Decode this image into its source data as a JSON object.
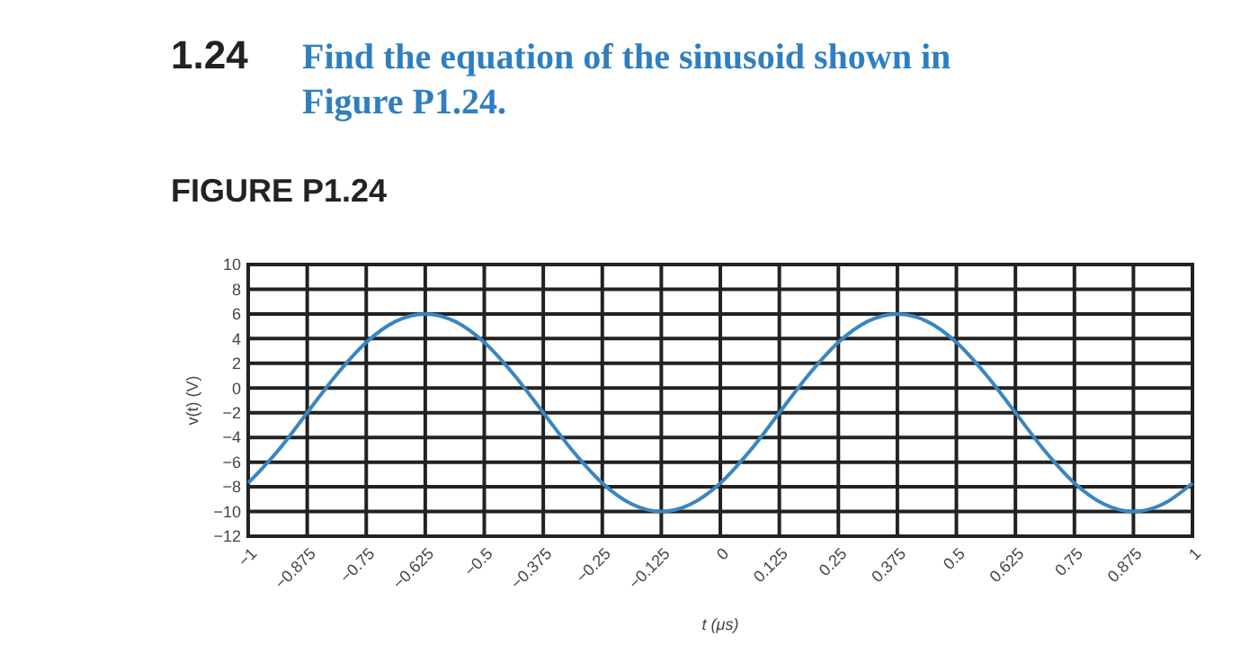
{
  "chart_data": {
    "type": "line",
    "title": "Find the equation of the sinusoid shown in Figure P1.24.",
    "annotations": [
      "1.24",
      "FIGURE P1.24"
    ],
    "xlabel": "t (μs)",
    "ylabel": "v(t) (V)",
    "x": [
      -1,
      -0.9375,
      -0.875,
      -0.8125,
      -0.75,
      -0.6875,
      -0.625,
      -0.5625,
      -0.5,
      -0.4375,
      -0.375,
      -0.3125,
      -0.25,
      -0.1875,
      -0.125,
      -0.0625,
      0,
      0.0625,
      0.125,
      0.1875,
      0.25,
      0.3125,
      0.375,
      0.4375,
      0.5,
      0.5625,
      0.625,
      0.6875,
      0.75,
      0.8125,
      0.875,
      0.9375,
      1
    ],
    "series": [
      {
        "color": "#3a86c0",
        "values": [
          -7.7,
          -5.1,
          -2,
          1.1,
          3.7,
          5.4,
          6,
          5.4,
          3.7,
          1.1,
          -2,
          -5.1,
          -7.7,
          -9.4,
          -10,
          -9.4,
          -7.7,
          -5.1,
          -2,
          1.1,
          3.7,
          5.4,
          6,
          5.4,
          3.7,
          1.1,
          -2,
          -5.1,
          -7.7,
          -9.4,
          -10,
          -9.4,
          -7.7
        ]
      }
    ],
    "xlim": [
      -1,
      1
    ],
    "ylim": [
      -12,
      10
    ],
    "xticks": [
      {
        "value": -1,
        "label": "−1"
      },
      {
        "value": -0.875,
        "label": "−0.875"
      },
      {
        "value": -0.75,
        "label": "−0.75"
      },
      {
        "value": -0.625,
        "label": "−0.625"
      },
      {
        "value": -0.5,
        "label": "−0.5"
      },
      {
        "value": -0.375,
        "label": "−0.375"
      },
      {
        "value": -0.25,
        "label": "−0.25"
      },
      {
        "value": -0.125,
        "label": "−0.125"
      },
      0,
      0.125,
      0.25,
      0.375,
      0.5,
      0.625,
      0.75,
      0.875,
      1
    ],
    "yticks": [
      {
        "value": -12,
        "label": "−12"
      },
      {
        "value": -10,
        "label": "−10"
      },
      {
        "value": -8,
        "label": "−8"
      },
      {
        "value": -6,
        "label": "−6"
      },
      {
        "value": -4,
        "label": "−4"
      },
      {
        "value": -2,
        "label": "−2"
      },
      0,
      2,
      4,
      6,
      8,
      10
    ],
    "grid": true,
    "marker": "none",
    "line_style": "solid"
  }
}
